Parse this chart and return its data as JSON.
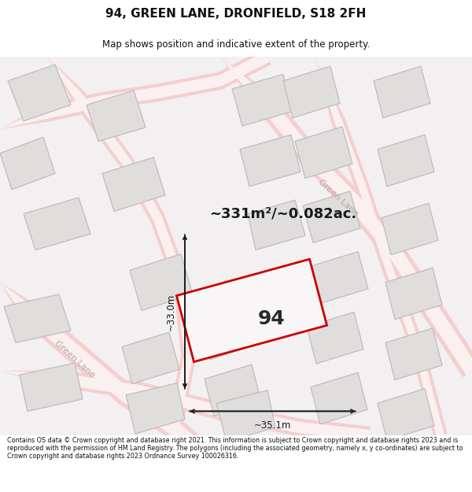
{
  "title": "94, GREEN LANE, DRONFIELD, S18 2FH",
  "subtitle": "Map shows position and indicative extent of the property.",
  "area_text": "~331m²/~0.082ac.",
  "property_number": "94",
  "dim_width": "~35.1m",
  "dim_height": "~33.0m",
  "footer": "Contains OS data © Crown copyright and database right 2021. This information is subject to Crown copyright and database rights 2023 and is reproduced with the permission of HM Land Registry. The polygons (including the associated geometry, namely x, y co-ordinates) are subject to Crown copyright and database rights 2023 Ordnance Survey 100026316.",
  "map_bg": "#f2f0f0",
  "building_fill": "#e0dddd",
  "building_edge": "#bcb8b8",
  "road_fill": "#f7d8d8",
  "road_edge": "#f0c0c0",
  "prop_fill": "#f8f6f6",
  "prop_edge": "#cc0000",
  "road_label_color": "#aaaaaa",
  "title_color": "#111111",
  "footer_color": "#111111",
  "white": "#ffffff"
}
